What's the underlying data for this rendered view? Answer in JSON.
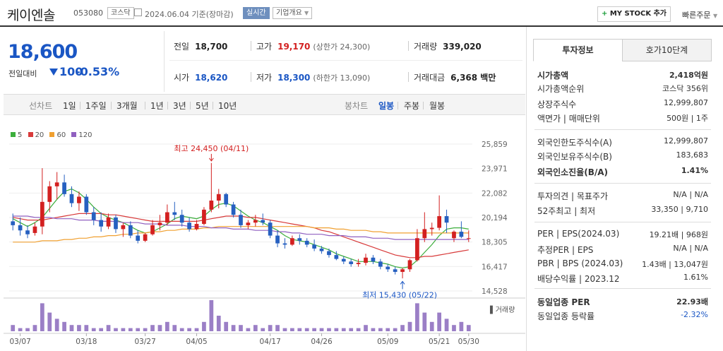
{
  "header": {
    "name": "케이엔솔",
    "code": "053080",
    "market": "코스닥",
    "date": "2024.06.04 기준(장마감)",
    "realtime": "실시간",
    "company_info": "기업개요",
    "my_stock": "MY STOCK 추가",
    "my_stock_plus": "+",
    "quick_order": "빠른주문"
  },
  "summary": {
    "price": "18,600",
    "change_label": "전일대비",
    "change_value": "100",
    "change_percent": "-0.53%",
    "prev_label": "전일",
    "prev": "18,700",
    "high_label": "고가",
    "high": "19,170",
    "upper": "(상한가 24,300)",
    "volume_label": "거래량",
    "volume": "339,020",
    "open_label": "시가",
    "open": "18,620",
    "low_label": "저가",
    "low": "18,300",
    "lower": "(하한가 13,090)",
    "amount_label": "거래대금",
    "amount": "6,368 백만"
  },
  "period_bar": {
    "sun": "선차트",
    "periods": [
      "1일",
      "1주일",
      "3개월",
      "1년",
      "3년",
      "5년",
      "10년"
    ],
    "bong": "봉차트",
    "bong_types": [
      "일봉",
      "주봉",
      "월봉"
    ]
  },
  "chart_data": {
    "type": "candlestick",
    "legend": [
      "5",
      "20",
      "60",
      "120"
    ],
    "legend_colors": [
      "#3cae3c",
      "#d83a3a",
      "#f0a030",
      "#9060c0"
    ],
    "up_color": "#d32020",
    "down_color": "#2660c0",
    "y_ticks": [
      "25,859",
      "23,971",
      "22,082",
      "20,194",
      "18,305",
      "16,417",
      "14,528"
    ],
    "x_ticks": [
      "03/07",
      "03/18",
      "03/27",
      "04/05",
      "04/17",
      "04/26",
      "05/09",
      "05/21",
      "05/30"
    ],
    "max_note": "최고 24,450 (04/11)",
    "min_note": "최저 15,430 (05/22)",
    "volume_label": "거래량",
    "ylim": [
      14528,
      25859
    ],
    "candles": [
      [
        19.9,
        20.5,
        19.2,
        19.6
      ],
      [
        19.6,
        20.2,
        18.8,
        19.2
      ],
      [
        19.2,
        19.6,
        18.6,
        18.9
      ],
      [
        19.0,
        19.8,
        18.8,
        19.5
      ],
      [
        19.5,
        24.0,
        18.9,
        21.4
      ],
      [
        21.4,
        23.0,
        20.6,
        22.6
      ],
      [
        22.6,
        23.7,
        21.6,
        22.9
      ],
      [
        22.9,
        23.5,
        21.8,
        22.0
      ],
      [
        22.0,
        22.6,
        21.0,
        21.3
      ],
      [
        21.3,
        22.2,
        20.7,
        21.8
      ],
      [
        21.8,
        22.0,
        20.4,
        20.6
      ],
      [
        20.6,
        21.0,
        19.6,
        20.0
      ],
      [
        20.0,
        20.6,
        19.1,
        19.5
      ],
      [
        19.5,
        20.5,
        19.3,
        20.2
      ],
      [
        20.2,
        20.4,
        19.0,
        19.3
      ],
      [
        19.3,
        19.8,
        18.7,
        19.6
      ],
      [
        19.6,
        19.9,
        18.6,
        18.8
      ],
      [
        18.8,
        19.2,
        18.2,
        18.4
      ],
      [
        18.4,
        19.0,
        18.3,
        18.9
      ],
      [
        18.9,
        20.0,
        18.8,
        19.6
      ],
      [
        19.6,
        20.4,
        19.2,
        19.8
      ],
      [
        19.8,
        21.2,
        19.6,
        20.6
      ],
      [
        20.6,
        21.4,
        20.0,
        20.4
      ],
      [
        20.4,
        20.8,
        19.5,
        19.8
      ],
      [
        19.8,
        20.2,
        19.1,
        19.3
      ],
      [
        19.3,
        20.0,
        19.2,
        19.7
      ],
      [
        19.7,
        21.0,
        19.6,
        20.8
      ],
      [
        20.8,
        24.4,
        20.6,
        21.5
      ],
      [
        21.5,
        22.4,
        20.9,
        22.0
      ],
      [
        22.0,
        22.1,
        21.0,
        21.2
      ],
      [
        21.2,
        21.4,
        20.2,
        20.4
      ],
      [
        20.4,
        20.8,
        19.4,
        19.6
      ],
      [
        19.6,
        20.0,
        19.3,
        19.8
      ],
      [
        19.8,
        20.4,
        19.5,
        20.0
      ],
      [
        20.0,
        20.5,
        19.6,
        19.8
      ],
      [
        19.8,
        20.0,
        18.6,
        18.8
      ],
      [
        18.8,
        19.2,
        17.9,
        18.2
      ],
      [
        18.2,
        18.6,
        17.8,
        18.1
      ],
      [
        18.1,
        18.8,
        18.0,
        18.6
      ],
      [
        18.6,
        18.9,
        18.1,
        18.4
      ],
      [
        18.4,
        18.6,
        17.9,
        18.1
      ],
      [
        18.1,
        18.5,
        17.6,
        17.8
      ],
      [
        17.8,
        18.0,
        17.4,
        17.6
      ],
      [
        17.6,
        17.8,
        17.1,
        17.3
      ],
      [
        17.3,
        17.6,
        16.9,
        17.0
      ],
      [
        17.0,
        17.2,
        16.6,
        16.8
      ],
      [
        16.8,
        17.0,
        16.4,
        16.6
      ],
      [
        16.6,
        17.0,
        16.4,
        16.7
      ],
      [
        16.7,
        17.4,
        16.5,
        17.1
      ],
      [
        17.1,
        17.3,
        16.6,
        16.8
      ],
      [
        16.8,
        17.0,
        16.2,
        16.4
      ],
      [
        16.4,
        16.6,
        16.0,
        16.2
      ],
      [
        16.2,
        16.4,
        15.8,
        16.0
      ],
      [
        16.0,
        16.3,
        15.5,
        16.2
      ],
      [
        16.2,
        17.0,
        16.0,
        16.9
      ],
      [
        16.9,
        19.3,
        16.8,
        18.6
      ],
      [
        18.6,
        20.6,
        18.3,
        19.3
      ],
      [
        19.3,
        19.8,
        18.8,
        19.4
      ],
      [
        19.4,
        21.9,
        19.2,
        20.3
      ],
      [
        20.3,
        20.8,
        19.0,
        19.8
      ],
      [
        18.6,
        19.2,
        18.3,
        19.1
      ],
      [
        19.1,
        19.9,
        18.6,
        18.7
      ],
      [
        18.6,
        19.2,
        18.3,
        18.6
      ]
    ],
    "ma5": [
      20.1,
      19.8,
      19.5,
      19.8,
      20.2,
      20.9,
      21.6,
      22.2,
      22.4,
      22.1,
      21.6,
      21.0,
      20.5,
      20.2,
      20.0,
      19.8,
      19.5,
      19.2,
      19.0,
      19.1,
      19.4,
      19.7,
      20.1,
      20.3,
      20.2,
      20.1,
      20.3,
      20.8,
      21.2,
      21.3,
      21.1,
      20.7,
      20.3,
      20.0,
      19.8,
      19.5,
      19.2,
      18.8,
      18.5,
      18.4,
      18.3,
      18.1,
      17.9,
      17.7,
      17.4,
      17.2,
      17.0,
      16.8,
      16.8,
      16.8,
      16.7,
      16.6,
      16.4,
      16.3,
      16.4,
      16.9,
      17.5,
      18.1,
      18.8,
      19.3,
      19.4,
      19.4,
      19.3
    ],
    "ma20": [
      20.2,
      20.1,
      20.0,
      20.0,
      20.0,
      20.1,
      20.2,
      20.3,
      20.4,
      20.5,
      20.5,
      20.5,
      20.5,
      20.4,
      20.4,
      20.3,
      20.2,
      20.1,
      20.0,
      19.9,
      19.9,
      19.9,
      19.9,
      19.9,
      19.9,
      19.9,
      20.0,
      20.1,
      20.2,
      20.3,
      20.3,
      20.3,
      20.2,
      20.2,
      20.1,
      20.0,
      19.9,
      19.8,
      19.7,
      19.6,
      19.5,
      19.4,
      19.2,
      19.1,
      18.9,
      18.7,
      18.5,
      18.3,
      18.1,
      17.9,
      17.7,
      17.5,
      17.3,
      17.2,
      17.1,
      17.1,
      17.2,
      17.2,
      17.3,
      17.4,
      17.5,
      17.6,
      17.7
    ],
    "ma60": [
      18.3,
      18.3,
      18.3,
      18.3,
      18.4,
      18.4,
      18.4,
      18.5,
      18.5,
      18.6,
      18.6,
      18.7,
      18.7,
      18.8,
      18.8,
      18.9,
      18.9,
      19.0,
      19.0,
      19.1,
      19.1,
      19.2,
      19.2,
      19.3,
      19.3,
      19.3,
      19.4,
      19.4,
      19.5,
      19.5,
      19.5,
      19.5,
      19.5,
      19.5,
      19.5,
      19.5,
      19.5,
      19.5,
      19.5,
      19.5,
      19.5,
      19.4,
      19.4,
      19.4,
      19.3,
      19.3,
      19.2,
      19.2,
      19.2,
      19.1,
      19.1,
      19.0,
      19.0,
      19.0,
      19.0,
      19.0,
      19.0,
      19.0,
      19.0,
      19.0,
      19.0,
      19.0,
      19.0
    ],
    "ma120": [
      20.3,
      20.3,
      20.3,
      20.2,
      20.2,
      20.2,
      20.1,
      20.1,
      20.1,
      20.0,
      20.0,
      20.0,
      19.9,
      19.9,
      19.9,
      19.8,
      19.8,
      19.8,
      19.7,
      19.7,
      19.7,
      19.6,
      19.6,
      19.6,
      19.5,
      19.5,
      19.5,
      19.4,
      19.4,
      19.4,
      19.3,
      19.3,
      19.3,
      19.2,
      19.2,
      19.2,
      19.1,
      19.1,
      19.0,
      19.0,
      18.9,
      18.9,
      18.9,
      18.8,
      18.8,
      18.8,
      18.7,
      18.7,
      18.7,
      18.6,
      18.6,
      18.6,
      18.5,
      18.5,
      18.5,
      18.5,
      18.5,
      18.5,
      18.5,
      18.5,
      18.5,
      18.5,
      18.5
    ],
    "volumes": [
      2,
      1,
      1,
      2,
      9,
      6,
      4,
      3,
      2,
      2,
      2,
      1,
      1,
      2,
      1,
      1,
      1,
      1,
      1,
      2,
      2,
      3,
      2,
      1,
      1,
      1,
      3,
      10,
      5,
      3,
      2,
      2,
      1,
      2,
      1,
      2,
      2,
      1,
      1,
      1,
      1,
      1,
      1,
      1,
      1,
      1,
      1,
      1,
      2,
      1,
      1,
      1,
      1,
      2,
      3,
      9,
      6,
      3,
      6,
      4,
      2,
      3,
      2
    ]
  },
  "right_panel": {
    "tabs": [
      "투자정보",
      "호가10단계"
    ],
    "rows": [
      {
        "l": "시가총액",
        "r": "2,418억원",
        "bold": true
      },
      {
        "l": "시가총액순위",
        "r": "코스닥 356위"
      },
      {
        "l": "상장주식수",
        "r": "12,999,807"
      },
      {
        "l": "액면가 | 매매단위",
        "r": "500원 | 1주"
      },
      {
        "l": "외국인한도주식수(A)",
        "r": "12,999,807"
      },
      {
        "l": "외국인보유주식수(B)",
        "r": "183,683"
      },
      {
        "l": "외국인소진율(B/A)",
        "r": "1.41%",
        "bold": true
      },
      {
        "l": "투자의견 | 목표주가",
        "r": "N/A | N/A"
      },
      {
        "l": "52주최고 | 최저",
        "r": "33,350 | 9,710"
      },
      {
        "l": "PER | EPS(2024.03)",
        "r": "19.21배 | 968원"
      },
      {
        "l": "추정PER | EPS",
        "r": "N/A | N/A"
      },
      {
        "l": "PBR | BPS (2024.03)",
        "r": "1.43배 | 13,047원"
      },
      {
        "l": "배당수익률 | 2023.12",
        "r": "1.61%"
      },
      {
        "l": "동일업종 PER",
        "r": "22.93배",
        "bold": true
      },
      {
        "l": "동일업종 등락률",
        "r": "-2.32%",
        "blue": true
      }
    ]
  }
}
